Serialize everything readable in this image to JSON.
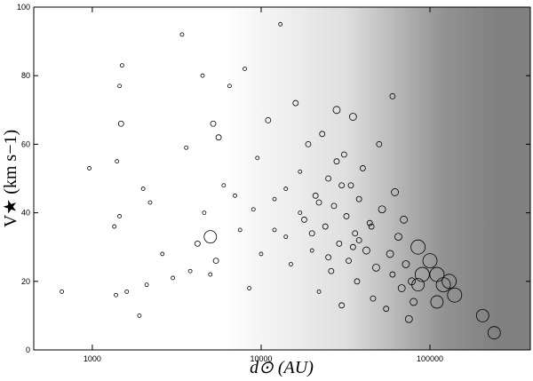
{
  "chart_data": {
    "type": "scatter",
    "xlabel": "d⊙ (AU)",
    "ylabel": "V★ (km s−1)",
    "xscale": "log",
    "xlim": [
      450,
      393000
    ],
    "xticks": [
      1000,
      10000,
      100000
    ],
    "ylim": [
      0,
      100
    ],
    "yticks": [
      0,
      20,
      40,
      60,
      80,
      100
    ],
    "series": [
      {
        "color": "#000000",
        "x": [
          660,
          960,
          1350,
          1380,
          1400,
          1450,
          1480,
          1500,
          1450,
          1600,
          1900,
          2000,
          2100,
          2200,
          2600,
          3000,
          3400,
          3600,
          3800,
          4200,
          4500,
          4600,
          5000,
          5200,
          5400,
          5600,
          6000,
          6500,
          7000,
          7500,
          8000,
          8500,
          9000,
          9500,
          10000,
          11000,
          12000,
          13000,
          14000,
          15000,
          16000,
          17000,
          18000,
          19000,
          20000,
          21000,
          22000,
          23000,
          24000,
          25000,
          26000,
          27000,
          28000,
          29000,
          30000,
          31000,
          32000,
          33000,
          34000,
          35000,
          36000,
          37000,
          38000,
          40000,
          42000,
          44000,
          46000,
          48000,
          50000,
          52000,
          55000,
          58000,
          60000,
          62000,
          65000,
          68000,
          70000,
          72000,
          75000,
          78000,
          80000,
          60000,
          45000,
          38000,
          30000,
          25000,
          20000,
          17000,
          14000,
          12000,
          35000,
          28000,
          22000,
          85000,
          100000,
          90000,
          110000,
          130000,
          85000,
          120000,
          140000,
          110000,
          205000,
          240000,
          5000
        ],
        "values": [
          17,
          53,
          36,
          16,
          55,
          39,
          66,
          83,
          77,
          17,
          10,
          47,
          19,
          43,
          28,
          21,
          92,
          59,
          23,
          31,
          80,
          40,
          22,
          66,
          26,
          62,
          48,
          77,
          45,
          35,
          82,
          18,
          41,
          56,
          28,
          67,
          44,
          95,
          33,
          25,
          72,
          52,
          38,
          60,
          29,
          45,
          17,
          63,
          36,
          50,
          23,
          42,
          70,
          31,
          13,
          57,
          39,
          26,
          48,
          68,
          34,
          20,
          44,
          53,
          29,
          37,
          15,
          24,
          60,
          41,
          12,
          28,
          22,
          46,
          33,
          18,
          38,
          25,
          9,
          20,
          14,
          74,
          36,
          32,
          48,
          27,
          34,
          40,
          47,
          35,
          30,
          55,
          43,
          30,
          26,
          22,
          22,
          20,
          19,
          19,
          16,
          14,
          10,
          5,
          33
        ],
        "sizes": [
          2,
          2,
          2,
          2,
          2,
          2,
          3,
          2,
          2,
          2,
          2,
          2,
          2,
          2,
          2,
          2,
          2,
          2,
          2,
          3,
          2,
          2,
          2,
          3,
          3,
          3,
          2,
          2,
          2,
          2,
          2,
          2,
          2,
          2,
          2,
          3,
          2,
          2,
          2,
          2,
          3,
          2,
          3,
          3,
          2,
          3,
          2,
          3,
          3,
          3,
          3,
          3,
          4,
          3,
          3,
          3,
          3,
          3,
          3,
          4,
          3,
          3,
          3,
          3,
          4,
          3,
          3,
          4,
          3,
          4,
          3,
          4,
          3,
          4,
          4,
          4,
          4,
          4,
          4,
          4,
          4,
          3,
          3,
          3,
          3,
          3,
          3,
          2,
          2,
          2,
          3,
          3,
          3,
          8,
          8,
          8,
          8,
          8,
          7,
          8,
          8,
          7,
          7,
          7,
          7
        ]
      }
    ]
  }
}
